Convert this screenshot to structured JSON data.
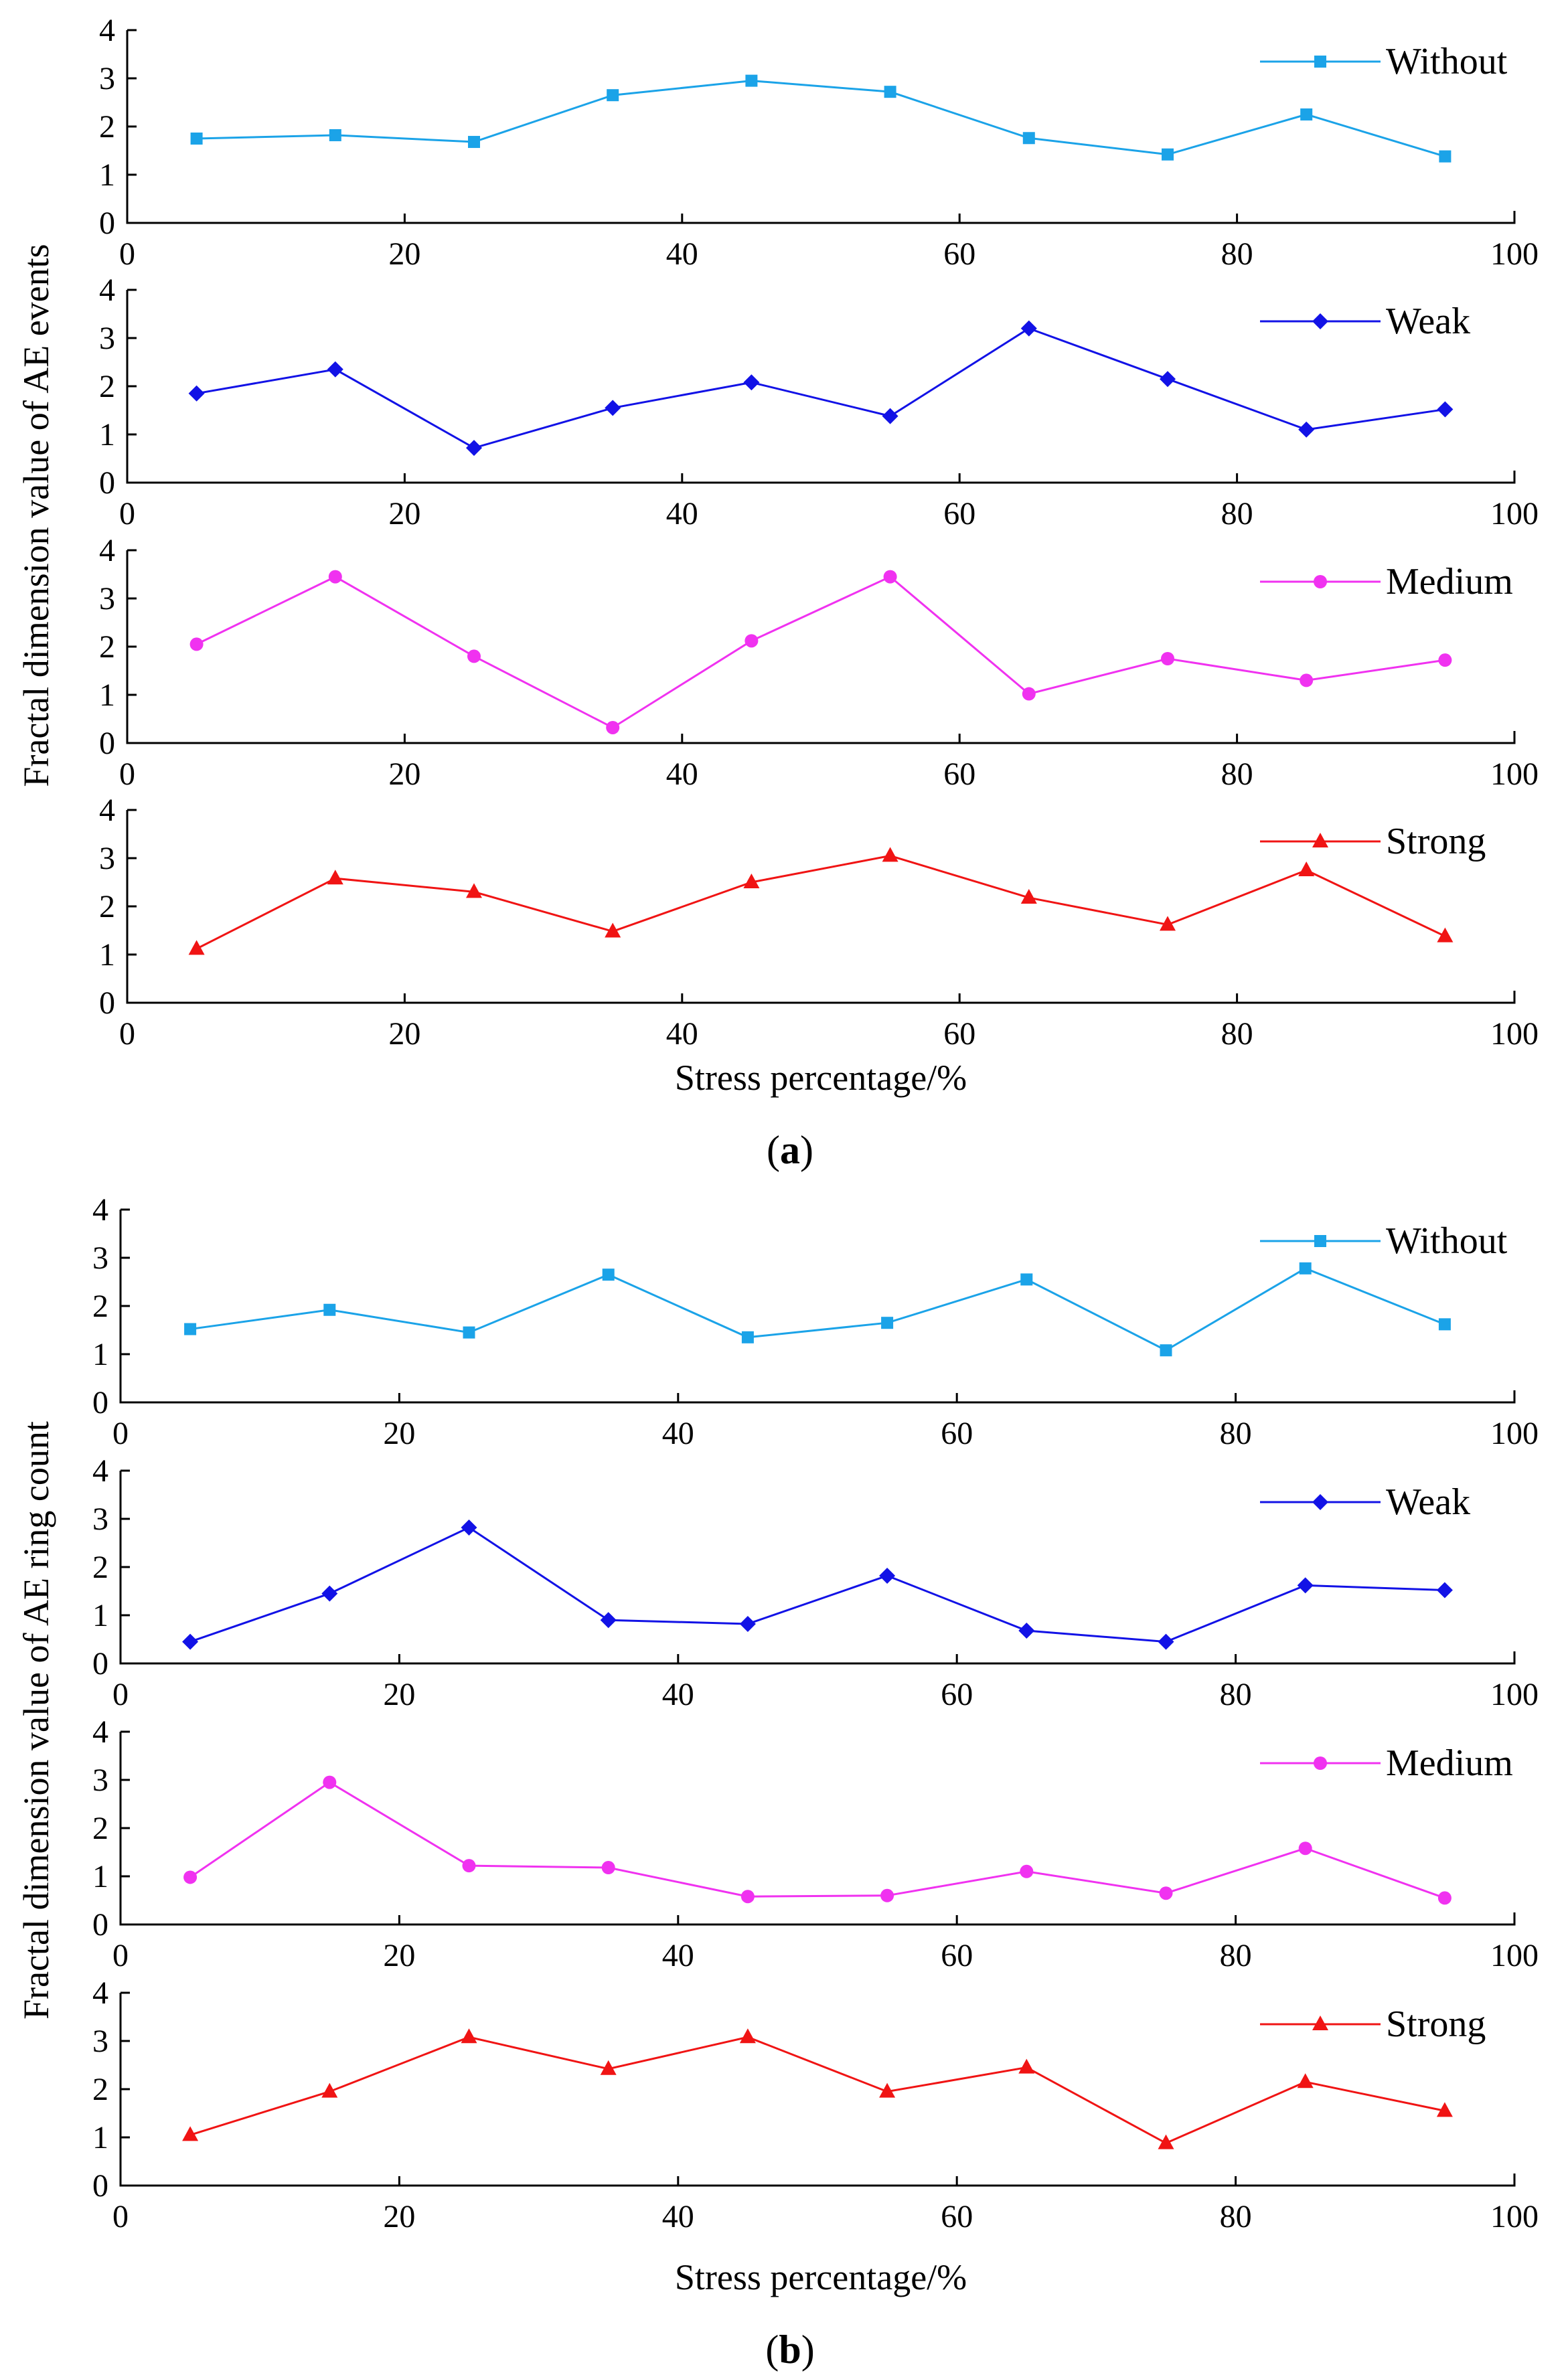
{
  "figure": {
    "panels": [
      {
        "label_open": "(",
        "label_letter": "a",
        "label_close": ")",
        "ylabel": "Fractal dimension value of AE events",
        "xlabel": "Stress percentage/%"
      },
      {
        "label_open": "(",
        "label_letter": "b",
        "label_close": ")",
        "ylabel": "Fractal dimension value of AE ring count",
        "xlabel": "Stress percentage/%"
      }
    ]
  },
  "chart_data": [
    {
      "type": "line",
      "panel": "a",
      "x": [
        5,
        15,
        25,
        35,
        45,
        55,
        65,
        75,
        85,
        95
      ],
      "xlim": [
        0,
        100
      ],
      "ylim": [
        0,
        4
      ],
      "xticks": [
        0,
        20,
        40,
        60,
        80,
        100
      ],
      "yticks": [
        0,
        1,
        2,
        3,
        4
      ],
      "series": [
        {
          "name": "Without",
          "color": "#1BA3E8",
          "marker": "square",
          "values": [
            1.75,
            1.82,
            1.68,
            2.65,
            2.95,
            2.72,
            1.76,
            1.42,
            2.25,
            1.38
          ]
        }
      ],
      "legend": "top-right"
    },
    {
      "type": "line",
      "panel": "a",
      "x": [
        5,
        15,
        25,
        35,
        45,
        55,
        65,
        75,
        85,
        95
      ],
      "xlim": [
        0,
        100
      ],
      "ylim": [
        0,
        4
      ],
      "xticks": [
        0,
        20,
        40,
        60,
        80,
        100
      ],
      "yticks": [
        0,
        1,
        2,
        3,
        4
      ],
      "series": [
        {
          "name": "Weak",
          "color": "#1212E6",
          "marker": "diamond",
          "values": [
            1.85,
            2.35,
            0.72,
            1.55,
            2.08,
            1.38,
            3.2,
            2.15,
            1.1,
            1.52
          ]
        }
      ],
      "legend": "top-right"
    },
    {
      "type": "line",
      "panel": "a",
      "x": [
        5,
        15,
        25,
        35,
        45,
        55,
        65,
        75,
        85,
        95
      ],
      "xlim": [
        0,
        100
      ],
      "ylim": [
        0,
        4
      ],
      "xticks": [
        0,
        20,
        40,
        60,
        80,
        100
      ],
      "yticks": [
        0,
        1,
        2,
        3,
        4
      ],
      "series": [
        {
          "name": "Medium",
          "color": "#F032F0",
          "marker": "circle",
          "values": [
            2.05,
            3.45,
            1.8,
            0.32,
            2.12,
            3.45,
            1.02,
            1.75,
            1.3,
            1.72
          ]
        }
      ],
      "legend": "top-right"
    },
    {
      "type": "line",
      "panel": "a",
      "x": [
        5,
        15,
        25,
        35,
        45,
        55,
        65,
        75,
        85,
        95
      ],
      "xlim": [
        0,
        100
      ],
      "ylim": [
        0,
        4
      ],
      "xticks": [
        0,
        20,
        40,
        60,
        80,
        100
      ],
      "yticks": [
        0,
        1,
        2,
        3,
        4
      ],
      "series": [
        {
          "name": "Strong",
          "color": "#F01414",
          "marker": "triangle",
          "values": [
            1.12,
            2.58,
            2.3,
            1.48,
            2.5,
            3.05,
            2.18,
            1.62,
            2.75,
            1.38
          ]
        }
      ],
      "legend": "top-right"
    },
    {
      "type": "line",
      "panel": "b",
      "x": [
        5,
        15,
        25,
        35,
        45,
        55,
        65,
        75,
        85,
        95
      ],
      "xlim": [
        0,
        100
      ],
      "ylim": [
        0,
        4
      ],
      "xticks": [
        0,
        20,
        40,
        60,
        80,
        100
      ],
      "yticks": [
        0,
        1,
        2,
        3,
        4
      ],
      "series": [
        {
          "name": "Without",
          "color": "#1BA3E8",
          "marker": "square",
          "values": [
            1.52,
            1.92,
            1.45,
            2.65,
            1.35,
            1.65,
            2.55,
            1.08,
            2.78,
            1.62
          ]
        }
      ],
      "legend": "top-right"
    },
    {
      "type": "line",
      "panel": "b",
      "x": [
        5,
        15,
        25,
        35,
        45,
        55,
        65,
        75,
        85,
        95
      ],
      "xlim": [
        0,
        100
      ],
      "ylim": [
        0,
        4
      ],
      "xticks": [
        0,
        20,
        40,
        60,
        80,
        100
      ],
      "yticks": [
        0,
        1,
        2,
        3,
        4
      ],
      "series": [
        {
          "name": "Weak",
          "color": "#1212E6",
          "marker": "diamond",
          "values": [
            0.45,
            1.45,
            2.82,
            0.9,
            0.82,
            1.82,
            0.68,
            0.45,
            1.62,
            1.52
          ]
        }
      ],
      "legend": "top-right"
    },
    {
      "type": "line",
      "panel": "b",
      "x": [
        5,
        15,
        25,
        35,
        45,
        55,
        65,
        75,
        85,
        95
      ],
      "xlim": [
        0,
        100
      ],
      "ylim": [
        0,
        4
      ],
      "xticks": [
        0,
        20,
        40,
        60,
        80,
        100
      ],
      "yticks": [
        0,
        1,
        2,
        3,
        4
      ],
      "series": [
        {
          "name": "Medium",
          "color": "#F032F0",
          "marker": "circle",
          "values": [
            0.98,
            2.95,
            1.22,
            1.18,
            0.58,
            0.6,
            1.1,
            0.65,
            1.58,
            0.55
          ]
        }
      ],
      "legend": "top-right"
    },
    {
      "type": "line",
      "panel": "b",
      "x": [
        5,
        15,
        25,
        35,
        45,
        55,
        65,
        75,
        85,
        95
      ],
      "xlim": [
        0,
        100
      ],
      "ylim": [
        0,
        4
      ],
      "xticks": [
        0,
        20,
        40,
        60,
        80,
        100
      ],
      "yticks": [
        0,
        1,
        2,
        3,
        4
      ],
      "series": [
        {
          "name": "Strong",
          "color": "#F01414",
          "marker": "triangle",
          "values": [
            1.05,
            1.95,
            3.08,
            2.42,
            3.08,
            1.95,
            2.45,
            0.88,
            2.15,
            1.55
          ]
        }
      ],
      "legend": "top-right"
    }
  ]
}
